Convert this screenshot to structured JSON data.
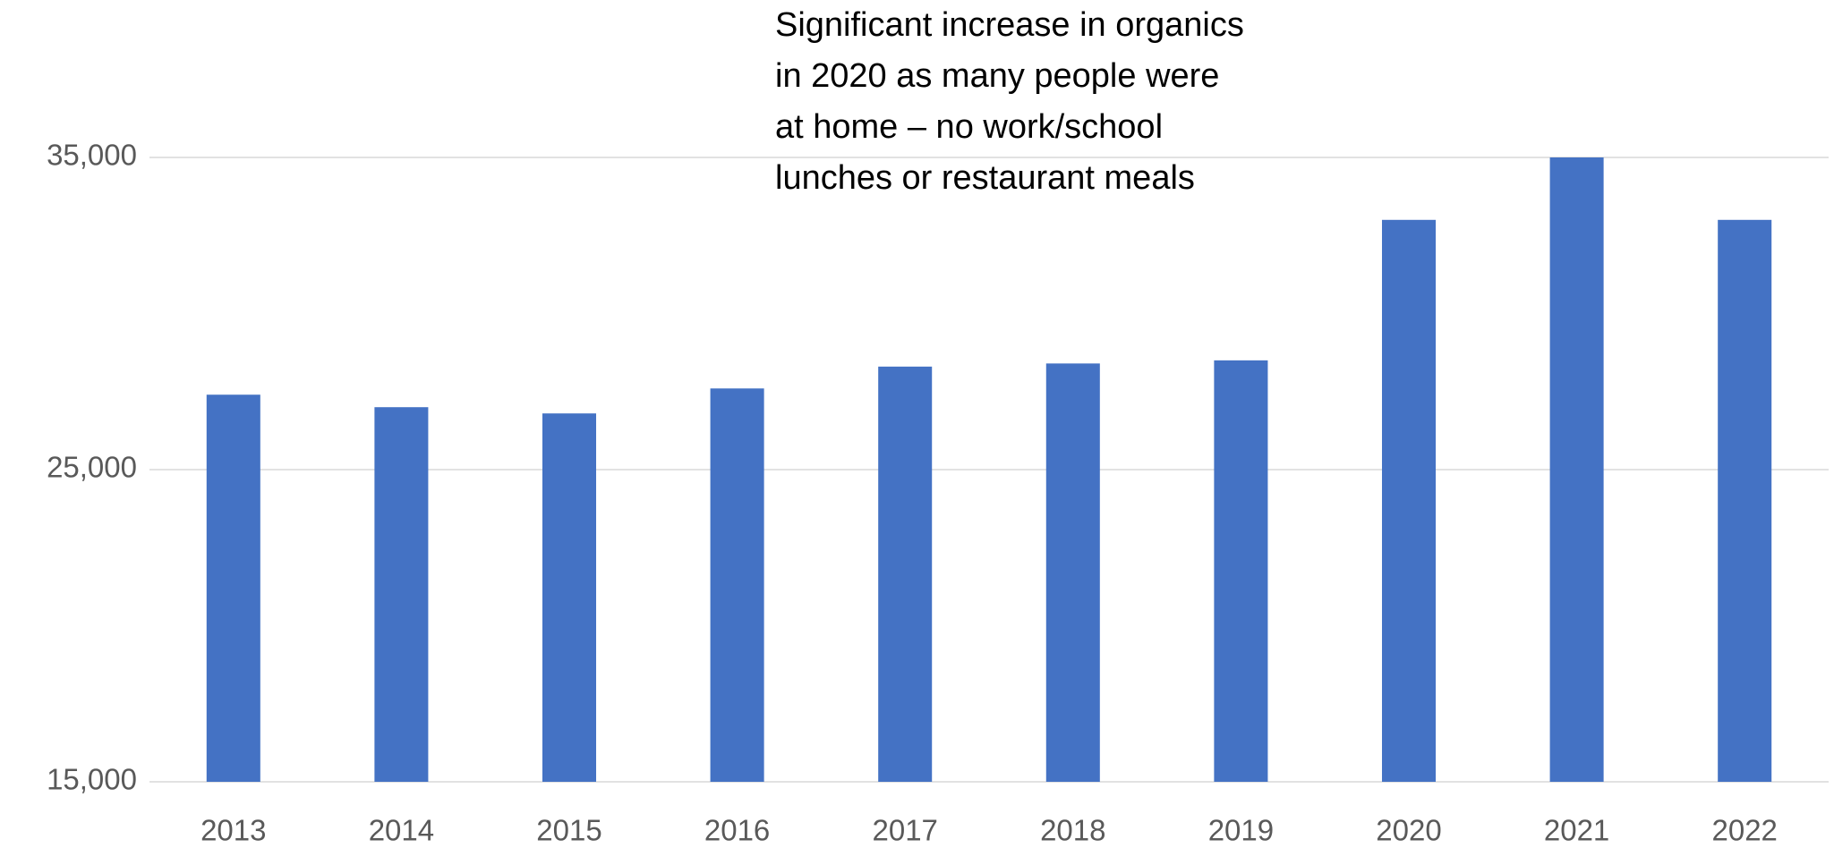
{
  "chart_data": {
    "type": "bar",
    "annotation": [
      "Significant increase in organics",
      "in 2020 as many people were",
      "at home – no work/school",
      "lunches or restaurant meals"
    ],
    "categories": [
      "2013",
      "2014",
      "2015",
      "2016",
      "2017",
      "2018",
      "2019",
      "2020",
      "2021",
      "2022"
    ],
    "values": [
      27400,
      27000,
      26800,
      27600,
      28300,
      28400,
      28500,
      33000,
      35000,
      33000
    ],
    "color": "#4472c4",
    "ylim": [
      15000,
      35000
    ],
    "yticks": [
      {
        "value": 15000,
        "label": "15,000"
      },
      {
        "value": 25000,
        "label": "25,000"
      },
      {
        "value": 35000,
        "label": "35,000"
      }
    ],
    "grid": true
  }
}
